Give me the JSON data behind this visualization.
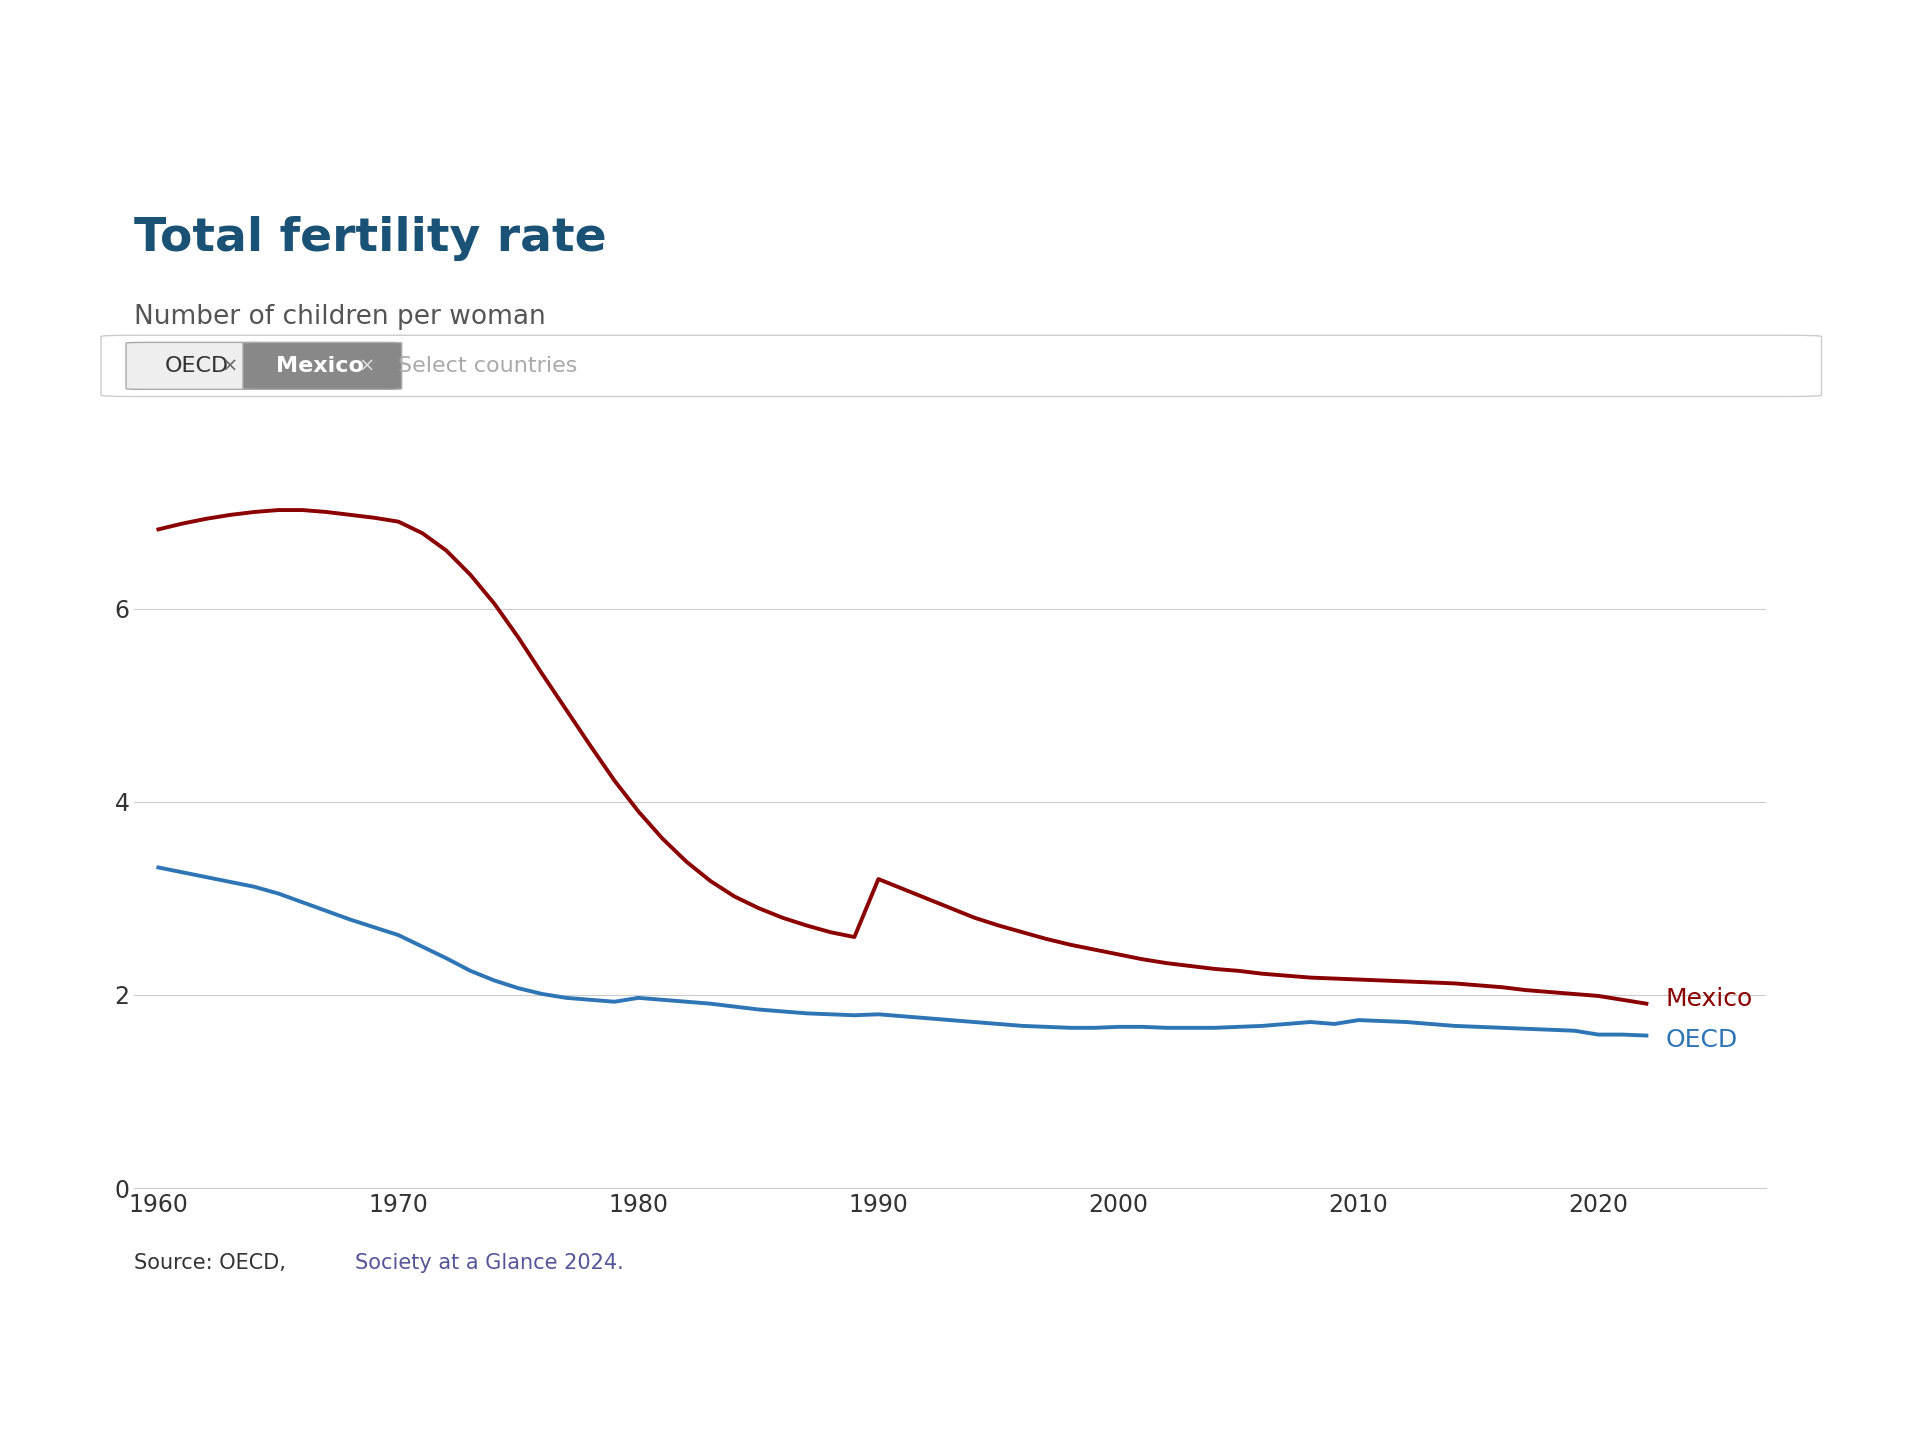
{
  "title": "Total fertility rate",
  "subtitle": "Number of children per woman",
  "source_text": "Source: OECD, Society at a Glance 2024.",
  "title_color": "#1a5276",
  "subtitle_color": "#555555",
  "background_color": "#ffffff",
  "mexico_color": "#8B0000",
  "oecd_color": "#2e75b6",
  "mexico_label": "Mexico",
  "oecd_label": "OECD",
  "ylim": [
    0,
    7.8
  ],
  "yticks": [
    0,
    2,
    4,
    6
  ],
  "xlim": [
    1959,
    2027
  ],
  "xticks": [
    1960,
    1970,
    1980,
    1990,
    2000,
    2010,
    2020
  ],
  "mexico_years": [
    1960,
    1961,
    1962,
    1963,
    1964,
    1965,
    1966,
    1967,
    1968,
    1969,
    1970,
    1971,
    1972,
    1973,
    1974,
    1975,
    1976,
    1977,
    1978,
    1979,
    1980,
    1981,
    1982,
    1983,
    1984,
    1985,
    1986,
    1987,
    1988,
    1989,
    1990,
    1991,
    1992,
    1993,
    1994,
    1995,
    1996,
    1997,
    1998,
    1999,
    2000,
    2001,
    2002,
    2003,
    2004,
    2005,
    2006,
    2007,
    2008,
    2009,
    2010,
    2011,
    2012,
    2013,
    2014,
    2015,
    2016,
    2017,
    2018,
    2019,
    2020,
    2021,
    2022
  ],
  "mexico_values": [
    6.82,
    6.88,
    6.93,
    6.97,
    7.0,
    7.02,
    7.02,
    7.0,
    6.97,
    6.94,
    6.9,
    6.78,
    6.6,
    6.35,
    6.05,
    5.7,
    5.32,
    4.95,
    4.58,
    4.22,
    3.9,
    3.62,
    3.38,
    3.18,
    3.02,
    2.9,
    2.8,
    2.72,
    2.65,
    2.6,
    3.2,
    3.1,
    3.0,
    2.9,
    2.8,
    2.72,
    2.65,
    2.58,
    2.52,
    2.47,
    2.42,
    2.37,
    2.33,
    2.3,
    2.27,
    2.25,
    2.22,
    2.2,
    2.18,
    2.17,
    2.16,
    2.15,
    2.14,
    2.13,
    2.12,
    2.1,
    2.08,
    2.05,
    2.03,
    2.01,
    1.99,
    1.95,
    1.91
  ],
  "oecd_years": [
    1960,
    1961,
    1962,
    1963,
    1964,
    1965,
    1966,
    1967,
    1968,
    1969,
    1970,
    1971,
    1972,
    1973,
    1974,
    1975,
    1976,
    1977,
    1978,
    1979,
    1980,
    1981,
    1982,
    1983,
    1984,
    1985,
    1986,
    1987,
    1988,
    1989,
    1990,
    1991,
    1992,
    1993,
    1994,
    1995,
    1996,
    1997,
    1998,
    1999,
    2000,
    2001,
    2002,
    2003,
    2004,
    2005,
    2006,
    2007,
    2008,
    2009,
    2010,
    2011,
    2012,
    2013,
    2014,
    2015,
    2016,
    2017,
    2018,
    2019,
    2020,
    2021,
    2022
  ],
  "oecd_values": [
    3.32,
    3.27,
    3.22,
    3.17,
    3.12,
    3.05,
    2.96,
    2.87,
    2.78,
    2.7,
    2.62,
    2.5,
    2.38,
    2.25,
    2.15,
    2.07,
    2.01,
    1.97,
    1.95,
    1.93,
    1.97,
    1.95,
    1.93,
    1.91,
    1.88,
    1.85,
    1.83,
    1.81,
    1.8,
    1.79,
    1.8,
    1.78,
    1.76,
    1.74,
    1.72,
    1.7,
    1.68,
    1.67,
    1.66,
    1.66,
    1.67,
    1.67,
    1.66,
    1.66,
    1.66,
    1.67,
    1.68,
    1.7,
    1.72,
    1.7,
    1.74,
    1.73,
    1.72,
    1.7,
    1.68,
    1.67,
    1.66,
    1.65,
    1.64,
    1.63,
    1.59,
    1.59,
    1.58
  ]
}
